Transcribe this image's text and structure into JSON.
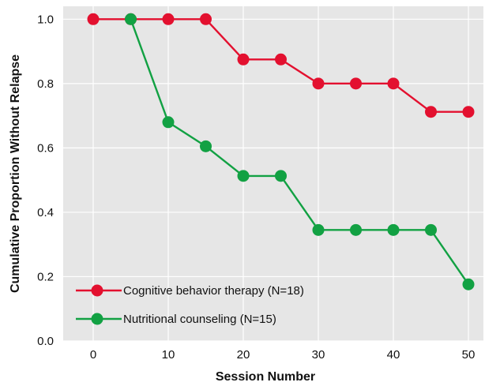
{
  "chart_data": {
    "type": "line",
    "xlabel": "Session Number",
    "ylabel": "Cumulative Proportion Without Relapse",
    "xlim": [
      -4,
      52
    ],
    "ylim": [
      0,
      1.04
    ],
    "x_ticks": [
      0,
      10,
      20,
      30,
      40,
      50
    ],
    "y_ticks": [
      0.0,
      0.2,
      0.4,
      0.6,
      0.8,
      1.0
    ],
    "y_tick_labels": [
      "0.0",
      "0.2",
      "0.4",
      "0.6",
      "0.8",
      "1.0"
    ],
    "grid": true,
    "legend_position": "bottom-left",
    "plot_background": "#e6e6e6",
    "series": [
      {
        "name": "Cognitive behavior therapy (N=18)",
        "color": "#e3102f",
        "x": [
          0,
          5,
          10,
          15,
          20,
          25,
          30,
          35,
          40,
          45,
          50
        ],
        "values": [
          1.0,
          1.0,
          1.0,
          1.0,
          0.875,
          0.875,
          0.8,
          0.8,
          0.8,
          0.712,
          0.712
        ]
      },
      {
        "name": "Nutritional counseling (N=15)",
        "color": "#12a143",
        "x": [
          5,
          10,
          15,
          20,
          25,
          30,
          35,
          40,
          45,
          50
        ],
        "values": [
          1.0,
          0.68,
          0.605,
          0.513,
          0.513,
          0.345,
          0.345,
          0.345,
          0.345,
          0.176
        ]
      }
    ]
  }
}
